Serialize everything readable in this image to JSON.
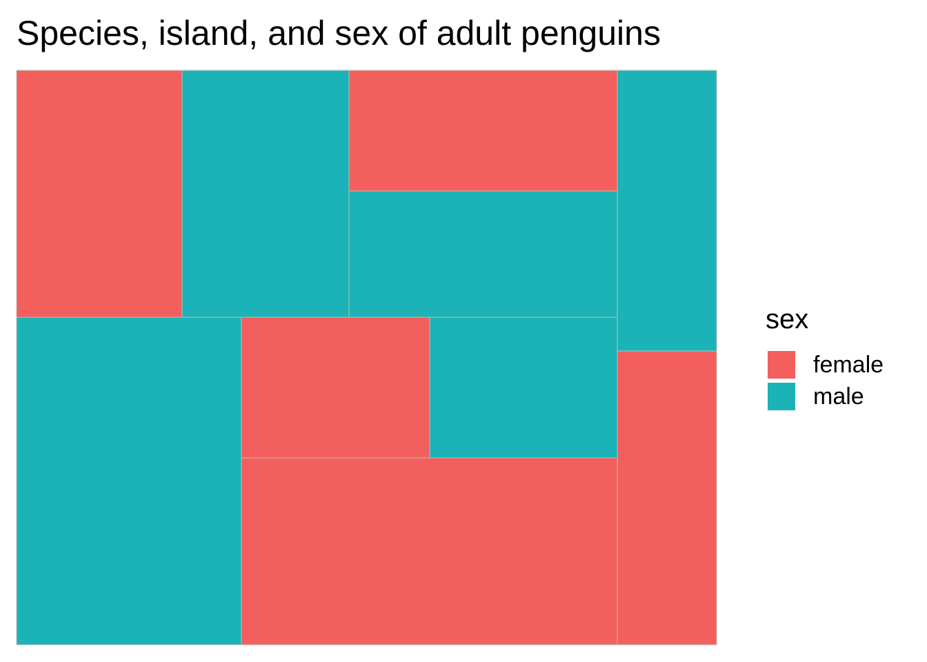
{
  "chart_data": {
    "type": "treemap",
    "title": "Species, island, and sex of adult penguins",
    "legend": {
      "title": "sex",
      "position": "right",
      "entries": [
        {
          "label": "female",
          "color": "#F35F5C"
        },
        {
          "label": "male",
          "color": "#1BB3B7"
        }
      ]
    },
    "colors": {
      "female": "#F35F5C",
      "male": "#1BB3B7",
      "border": "#bdbdbd"
    },
    "tiles": [
      {
        "sex": "female",
        "value": 24
      },
      {
        "sex": "male",
        "value": 24
      },
      {
        "sex": "female",
        "value": 22
      },
      {
        "sex": "male",
        "value": 22
      },
      {
        "sex": "male",
        "value": 61
      },
      {
        "sex": "female",
        "value": 27
      },
      {
        "sex": "male",
        "value": 27
      },
      {
        "sex": "female",
        "value": 58
      },
      {
        "sex": "male",
        "value": 34
      },
      {
        "sex": "female",
        "value": 34
      }
    ]
  }
}
